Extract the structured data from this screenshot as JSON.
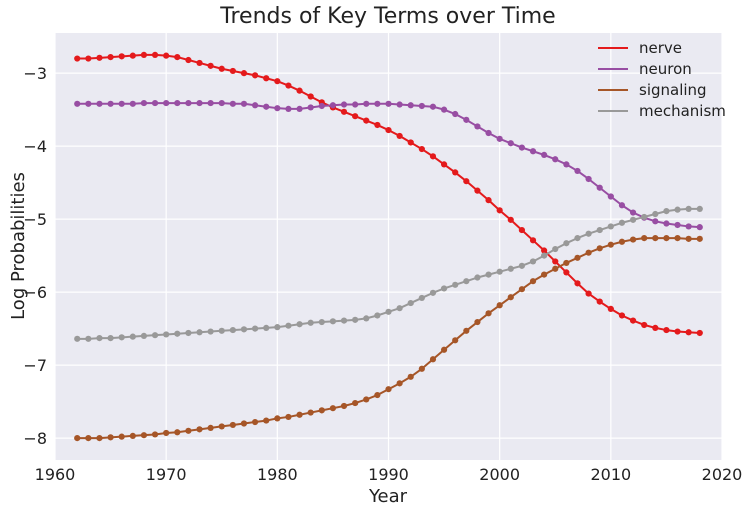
{
  "chart_data": {
    "type": "line",
    "title": "Trends of Key Terms over Time",
    "xlabel": "Year",
    "ylabel": "Log Probabilities",
    "xlim": [
      1960,
      2020
    ],
    "ylim": [
      -8.3,
      -2.45
    ],
    "xticks": [
      1960,
      1970,
      1980,
      1990,
      2000,
      2010,
      2020
    ],
    "yticks": [
      -8,
      -7,
      -6,
      -5,
      -4,
      -3
    ],
    "ytick_labels": [
      "−8",
      "−7",
      "−6",
      "−5",
      "−4",
      "−3"
    ],
    "grid": true,
    "legend_position": "top-right",
    "x_start": 1962,
    "x_end": 2017,
    "series": [
      {
        "name": "nerve",
        "color": "#e41a1c",
        "values": [
          -2.8,
          -2.8,
          -2.79,
          -2.78,
          -2.77,
          -2.76,
          -2.75,
          -2.75,
          -2.76,
          -2.78,
          -2.82,
          -2.86,
          -2.9,
          -2.94,
          -2.97,
          -3.0,
          -3.03,
          -3.07,
          -3.11,
          -3.17,
          -3.24,
          -3.32,
          -3.4,
          -3.47,
          -3.53,
          -3.59,
          -3.65,
          -3.71,
          -3.78,
          -3.86,
          -3.95,
          -4.04,
          -4.14,
          -4.25,
          -4.36,
          -4.48,
          -4.61,
          -4.74,
          -4.88,
          -5.01,
          -5.15,
          -5.29,
          -5.43,
          -5.58,
          -5.73,
          -5.88,
          -6.02,
          -6.13,
          -6.23,
          -6.32,
          -6.39,
          -6.45,
          -6.49,
          -6.52,
          -6.54,
          -6.55,
          -6.56
        ]
      },
      {
        "name": "neuron",
        "color": "#984ea3",
        "values": [
          -3.42,
          -3.42,
          -3.42,
          -3.42,
          -3.42,
          -3.42,
          -3.41,
          -3.41,
          -3.41,
          -3.41,
          -3.41,
          -3.41,
          -3.41,
          -3.41,
          -3.42,
          -3.42,
          -3.44,
          -3.46,
          -3.48,
          -3.49,
          -3.49,
          -3.47,
          -3.45,
          -3.44,
          -3.43,
          -3.43,
          -3.42,
          -3.42,
          -3.42,
          -3.43,
          -3.44,
          -3.45,
          -3.46,
          -3.5,
          -3.56,
          -3.64,
          -3.73,
          -3.82,
          -3.9,
          -3.96,
          -4.02,
          -4.07,
          -4.12,
          -4.18,
          -4.25,
          -4.34,
          -4.45,
          -4.57,
          -4.69,
          -4.81,
          -4.91,
          -4.98,
          -5.03,
          -5.06,
          -5.08,
          -5.1,
          -5.11
        ]
      },
      {
        "name": "signaling",
        "color": "#a65628",
        "values": [
          -8.0,
          -8.0,
          -8.0,
          -7.99,
          -7.98,
          -7.97,
          -7.96,
          -7.95,
          -7.93,
          -7.92,
          -7.9,
          -7.88,
          -7.86,
          -7.84,
          -7.82,
          -7.8,
          -7.78,
          -7.76,
          -7.73,
          -7.71,
          -7.68,
          -7.65,
          -7.62,
          -7.59,
          -7.56,
          -7.52,
          -7.47,
          -7.41,
          -7.33,
          -7.25,
          -7.16,
          -7.05,
          -6.92,
          -6.79,
          -6.66,
          -6.53,
          -6.41,
          -6.29,
          -6.18,
          -6.07,
          -5.96,
          -5.85,
          -5.76,
          -5.68,
          -5.6,
          -5.53,
          -5.46,
          -5.4,
          -5.35,
          -5.31,
          -5.28,
          -5.26,
          -5.26,
          -5.26,
          -5.26,
          -5.27,
          -5.27
        ]
      },
      {
        "name": "mechanism",
        "color": "#999999",
        "values": [
          -6.64,
          -6.64,
          -6.63,
          -6.63,
          -6.62,
          -6.61,
          -6.6,
          -6.59,
          -6.58,
          -6.57,
          -6.56,
          -6.55,
          -6.54,
          -6.53,
          -6.52,
          -6.51,
          -6.5,
          -6.49,
          -6.48,
          -6.46,
          -6.44,
          -6.42,
          -6.41,
          -6.4,
          -6.39,
          -6.38,
          -6.36,
          -6.32,
          -6.27,
          -6.22,
          -6.15,
          -6.08,
          -6.01,
          -5.95,
          -5.9,
          -5.85,
          -5.8,
          -5.76,
          -5.72,
          -5.68,
          -5.64,
          -5.58,
          -5.5,
          -5.41,
          -5.33,
          -5.26,
          -5.2,
          -5.15,
          -5.1,
          -5.05,
          -5.01,
          -4.97,
          -4.93,
          -4.89,
          -4.87,
          -4.86,
          -4.86
        ]
      }
    ]
  }
}
